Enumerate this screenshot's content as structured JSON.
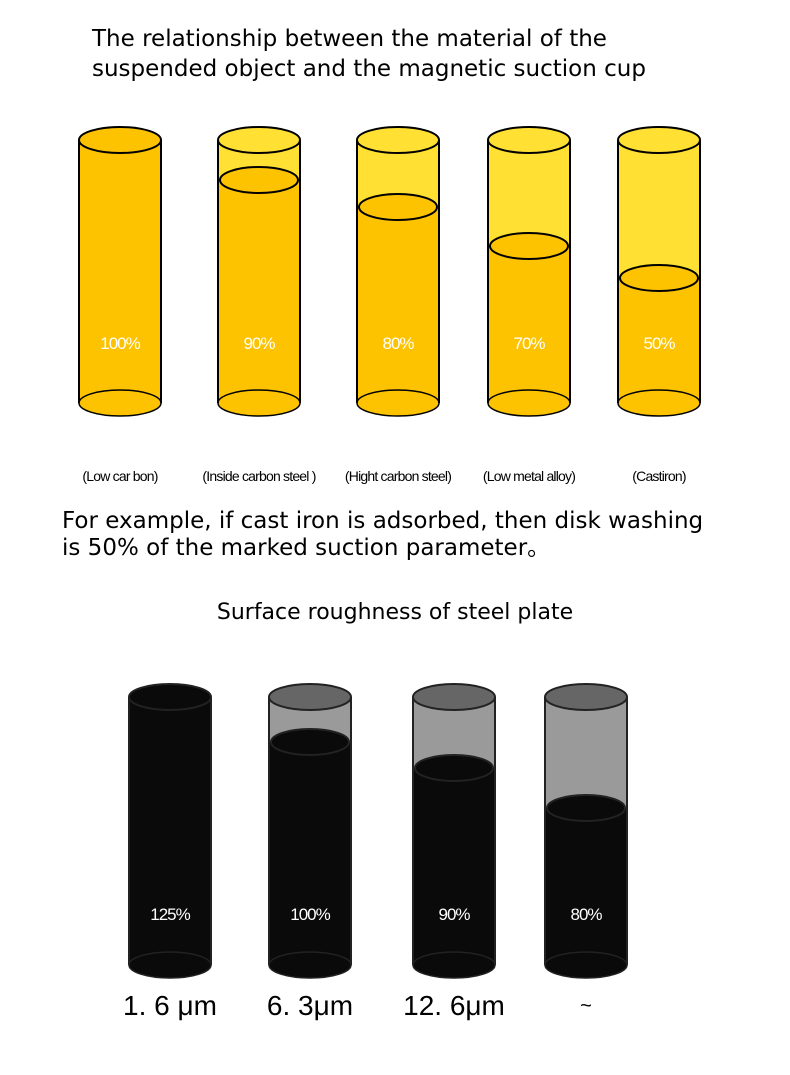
{
  "title": [
    "The relationship between the material of the",
    "suspended object and the magnetic suction cup"
  ],
  "example_text": [
    "For example, if cast iron is adsorbed, then disk washing",
    "is 50% of the marked suction parameter。"
  ],
  "roughness_title": "Surface roughness of steel plate",
  "colors": {
    "yellow_empty": "#FFE033",
    "yellow_fill": "#FDC300",
    "black_fill": "#0A0A0A",
    "grey_empty": "#9A9A9A",
    "grey_top": "#666666"
  },
  "chart_data": [
    {
      "type": "bar",
      "style": "cylinder",
      "categories": [
        "(Low car bon)",
        "(Inside carbon steel )",
        "(Hight carbon steel)",
        "(Low metal alloy)",
        "(Castiron)"
      ],
      "values": [
        100,
        90,
        80,
        70,
        50
      ],
      "labels": [
        "100%",
        "90%",
        "80%",
        "70%",
        "50%"
      ]
    },
    {
      "type": "bar",
      "style": "cylinder",
      "categories": [
        "1. 6 μm",
        "6. 3μm",
        "12. 6μm",
        "~"
      ],
      "values": [
        125,
        100,
        90,
        80
      ],
      "labels": [
        "125%",
        "100%",
        "90%",
        "80%"
      ]
    }
  ]
}
